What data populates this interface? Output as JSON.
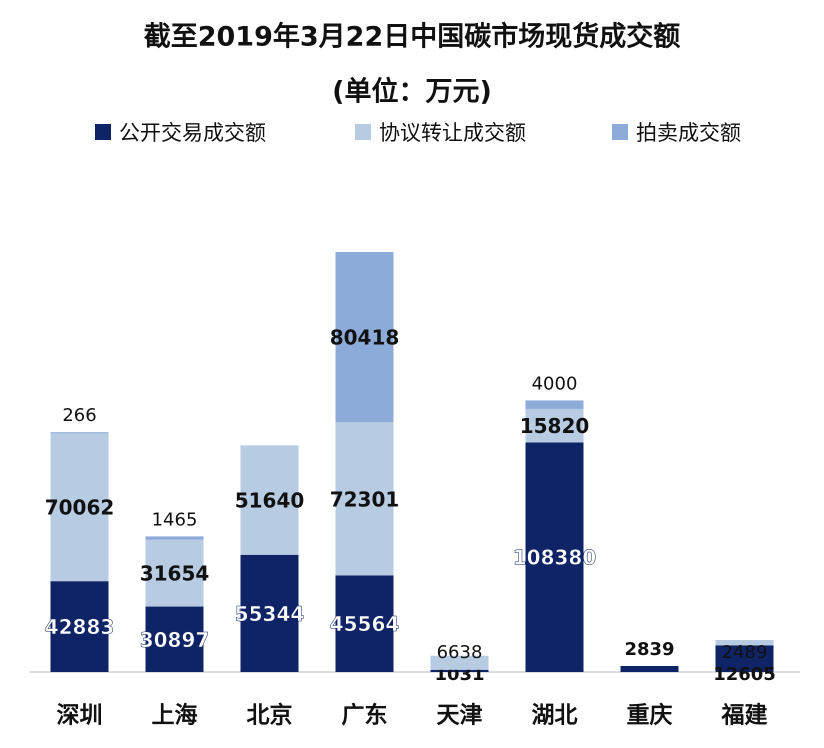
{
  "chart_data": {
    "type": "stacked-bar",
    "title": "截至2019年3月22日中国碳市场现货成交额",
    "subtitle": "(单位：万元)",
    "categories": [
      "深圳",
      "上海",
      "北京",
      "广东",
      "天津",
      "湖北",
      "重庆",
      "福建"
    ],
    "series": [
      {
        "name": "公开交易成交额",
        "color": "#0f2466",
        "values": [
          42883,
          30897,
          55344,
          45564,
          1031,
          108380,
          2839,
          12605
        ]
      },
      {
        "name": "协议转让成交额",
        "color": "#b7cbe3",
        "values": [
          70062,
          31654,
          51640,
          72301,
          6638,
          15820,
          null,
          2489
        ]
      },
      {
        "name": "拍卖成交额",
        "color": "#8dabd8",
        "values": [
          266,
          1465,
          null,
          80418,
          null,
          4000,
          null,
          null
        ]
      }
    ],
    "legend": "top"
  }
}
